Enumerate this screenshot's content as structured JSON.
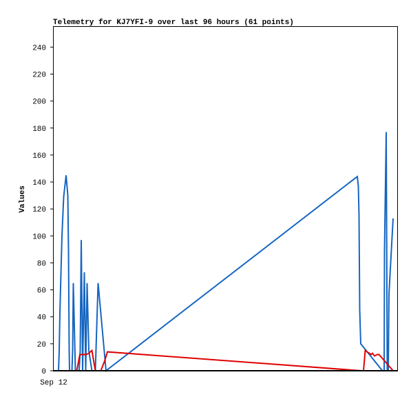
{
  "chart_data": {
    "type": "line",
    "title": "Telemetry for KJ7YFI-9 over last 96 hours (61 points)",
    "xlabel": "",
    "ylabel": "Values",
    "x_tick_labels": [
      "Sep 12"
    ],
    "y_ticks": [
      0,
      20,
      40,
      60,
      80,
      100,
      120,
      140,
      160,
      180,
      200,
      220,
      240
    ],
    "ylim": [
      0,
      255
    ],
    "xlim": [
      0,
      100
    ],
    "grid": false,
    "legend": "none",
    "series": [
      {
        "color": "#1565c0",
        "x": [
          0.0,
          0.9,
          1.4,
          1.6,
          1.8,
          2.1,
          2.4,
          2.9,
          3.6,
          4.1,
          4.3,
          4.5,
          4.6,
          4.8,
          5.0,
          5.1,
          5.3,
          5.5,
          5.7,
          6.3,
          6.6,
          6.8,
          7.0,
          7.4,
          7.7,
          8.0,
          8.4,
          8.9,
          9.3,
          9.7,
          10.2,
          11.1,
          12.1,
          12.9,
          15.2,
          88.2,
          88.5,
          88.7,
          88.9,
          89.2,
          95.5,
          95.7,
          95.8,
          96.0,
          96.1,
          96.6,
          96.9,
          97.1,
          97.2,
          97.4,
          98.6
        ],
        "values": [
          0,
          0,
          0,
          15,
          43,
          72,
          100,
          129,
          145,
          130,
          89,
          15,
          0,
          0,
          0,
          0,
          0,
          15,
          65,
          0,
          0,
          0,
          0,
          0,
          15,
          97,
          0,
          73,
          0,
          65,
          15,
          0,
          0,
          65,
          0,
          144,
          137,
          115,
          45,
          20,
          0,
          0,
          0,
          0,
          89,
          177,
          0,
          0,
          0,
          57,
          113
        ]
      },
      {
        "color": "#e00000",
        "x": [
          0.0,
          5.2,
          5.8,
          6.7,
          7.6,
          8.8,
          9.5,
          10.2,
          11.1,
          12.1,
          13.7,
          14.9,
          15.6,
          89.4,
          90.0,
          90.5,
          91.0,
          91.7,
          92.2,
          92.6,
          93.2,
          94.0,
          94.5,
          98.6
        ],
        "values": [
          0,
          0,
          0,
          0,
          12,
          12,
          12,
          13,
          15,
          0,
          0,
          8,
          14,
          0,
          0,
          15,
          14,
          13,
          12,
          13,
          11,
          12,
          12,
          0
        ]
      },
      {
        "color": "#000000",
        "x": [
          0.0,
          100.0
        ],
        "values": [
          0,
          0
        ]
      }
    ]
  }
}
